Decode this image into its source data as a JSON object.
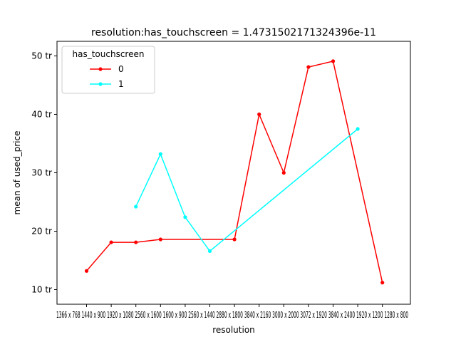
{
  "chart_data": {
    "type": "line",
    "title": "resolution:has_touchscreen = 1.4731502171324396e-11",
    "xlabel": "resolution",
    "ylabel": "mean of used_price",
    "categories": [
      "1366 x 768",
      "1440 x 900",
      "1920 x 1080",
      "2560 x 1600",
      "1600 x 900",
      "2560 x 1440",
      "2880 x 1800",
      "3840 x 2160",
      "3000 x 2000",
      "3072 x 1920",
      "3840 x 2400",
      "1920 x 1200",
      "1280 x 800"
    ],
    "tick_text_rendered": "1366 x 768  1440 x 900  1920 x 1080  2560 x 1600  1600 x 900  2560 x 1440  2880 x 1800  3840 x 2160  3000 x 2000  3072 x 1920  3840 x 2400  1920 x 1200  1280 x 800",
    "ylim": [
      7.5,
      52.5
    ],
    "yticks": [
      10,
      20,
      30,
      40,
      50
    ],
    "ytick_labels": [
      "10 tr",
      "20 tr",
      "30 tr",
      "40 tr",
      "50 tr"
    ],
    "legend_title": "has_touchscreen",
    "legend_position": "upper-left",
    "grid": false,
    "series": [
      {
        "name": "0",
        "color": "#ff0000",
        "points": [
          {
            "xi": 0,
            "y": 13.2
          },
          {
            "xi": 1,
            "y": 18.1
          },
          {
            "xi": 2,
            "y": 18.1
          },
          {
            "xi": 3,
            "y": 18.6
          },
          {
            "xi": 6,
            "y": 18.6
          },
          {
            "xi": 7,
            "y": 40.0
          },
          {
            "xi": 8,
            "y": 30.0
          },
          {
            "xi": 9,
            "y": 48.1
          },
          {
            "xi": 10,
            "y": 49.1
          },
          {
            "xi": 12,
            "y": 11.2
          }
        ]
      },
      {
        "name": "1",
        "color": "#00ffff",
        "points": [
          {
            "xi": 2,
            "y": 24.2
          },
          {
            "xi": 3,
            "y": 33.2
          },
          {
            "xi": 4,
            "y": 22.4
          },
          {
            "xi": 5,
            "y": 16.6
          },
          {
            "xi": 11,
            "y": 37.5
          }
        ]
      }
    ]
  }
}
